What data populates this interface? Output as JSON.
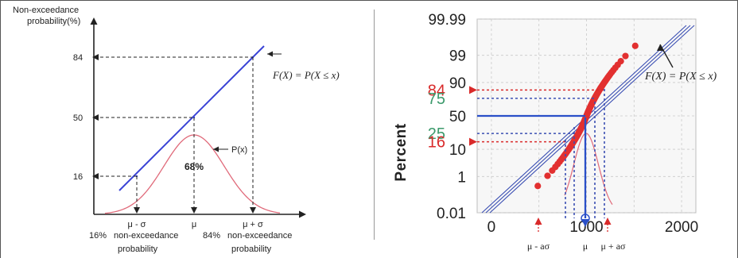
{
  "chart_data": [
    {
      "type": "line",
      "ylabel": "Non-exceedance probability(%)",
      "y_ticks": [
        "16",
        "50",
        "84"
      ],
      "x_ticks": [
        "μ - σ",
        "μ",
        "μ + σ"
      ],
      "formula": "F(X) = P(X ≤ x)",
      "pdf_label": "P(x)",
      "area_label": "68%",
      "below_left": [
        "16%",
        "non-exceedance",
        "probability"
      ],
      "below_right": [
        "84%",
        "non-exceedance",
        "probability"
      ],
      "series": [
        {
          "name": "",
          "x": [
            "μ - σ",
            "μ",
            "μ + σ"
          ],
          "values": [
            16,
            50,
            84
          ]
        }
      ],
      "colors": {
        "cdf_line": "#3b44d6",
        "pdf_curve": "#e06a7a",
        "axes": "#222222"
      }
    },
    {
      "type": "scatter",
      "ylabel": "Percent",
      "yscale": "probability",
      "y_ticks": [
        "0.01",
        "1",
        "10",
        "50",
        "90",
        "99",
        "99.99"
      ],
      "x_ticks": [
        "0",
        "1000",
        "2000"
      ],
      "xlim": [
        -150,
        2150
      ],
      "highlight_labels": [
        {
          "text": "84",
          "color": "#d92a2a"
        },
        {
          "text": "75",
          "color": "#3c9a6c"
        },
        {
          "text": "25",
          "color": "#3c9a6c"
        },
        {
          "text": "16",
          "color": "#d92a2a"
        }
      ],
      "formula": "F(X) = P(X ≤ x)",
      "below_ticks": [
        "μ - aσ",
        "μ",
        "μ + aσ"
      ],
      "grid": true,
      "colors": {
        "points": "#e23030",
        "fit_lines": "#3b4fb3",
        "mean_line": "#2a4fc8",
        "pdf_curve": "#e06a7a"
      }
    }
  ]
}
